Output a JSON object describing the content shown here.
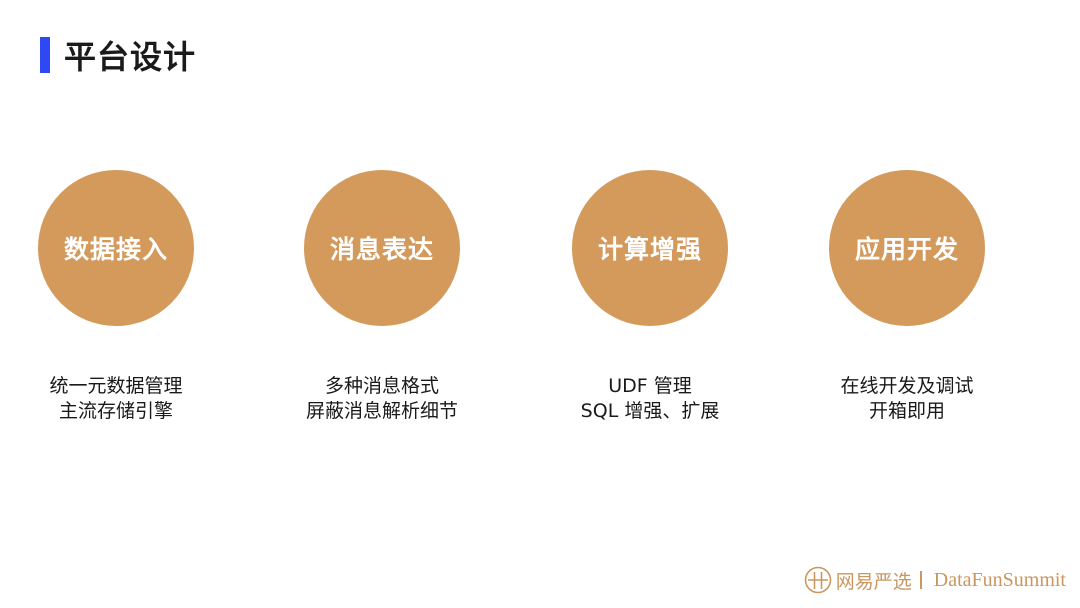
{
  "header": {
    "title": "平台设计"
  },
  "features": [
    {
      "label": "数据接入",
      "lines": [
        "统一元数据管理",
        "主流存储引擎"
      ]
    },
    {
      "label": "消息表达",
      "lines": [
        "多种消息格式",
        "屏蔽消息解析细节"
      ]
    },
    {
      "label": "计算增强",
      "lines": [
        "UDF 管理",
        "SQL 增强、扩展"
      ]
    },
    {
      "label": "应用开发",
      "lines": [
        "在线开发及调试",
        "开箱即用"
      ]
    }
  ],
  "footer": {
    "brand": "网易严选",
    "partner": "DataFunSummit"
  },
  "colors": {
    "accent_bar": "#2f49f2",
    "circle": "#d39a5c",
    "footer": "#c9975f"
  }
}
